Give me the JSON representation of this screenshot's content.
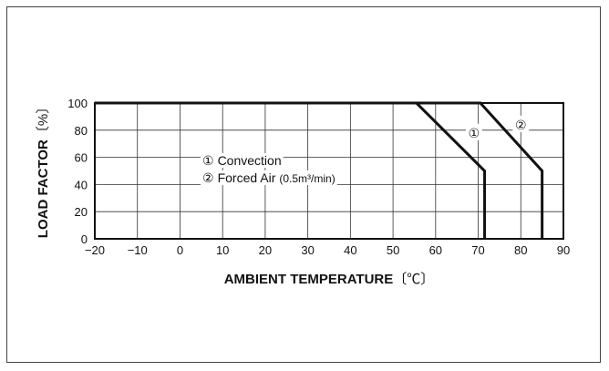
{
  "chart_data": {
    "type": "line",
    "title": "",
    "xlabel": "AMBIENT TEMPERATURE",
    "xlabel_unit": "〔℃〕",
    "ylabel": "LOAD FACTOR",
    "ylabel_unit": "〔%〕",
    "xlim": [
      -20,
      90
    ],
    "ylim": [
      0,
      100
    ],
    "x_ticks": [
      -20,
      -10,
      0,
      10,
      20,
      30,
      40,
      50,
      60,
      70,
      80,
      90
    ],
    "x_tick_labels": [
      "−20",
      "−10",
      "0",
      "10",
      "20",
      "30",
      "40",
      "50",
      "60",
      "70",
      "80",
      "90"
    ],
    "y_ticks": [
      0,
      20,
      40,
      60,
      80,
      100
    ],
    "y_tick_labels": [
      "0",
      "20",
      "40",
      "60",
      "80",
      "100"
    ],
    "grid": true,
    "series": [
      {
        "name": "Convection",
        "marker": "①",
        "points": [
          [
            -20,
            100
          ],
          [
            55.5,
            100
          ],
          [
            71.5,
            50
          ],
          [
            71.5,
            0
          ]
        ]
      },
      {
        "name": "Forced Air",
        "marker": "②",
        "points": [
          [
            -20,
            100
          ],
          [
            70.5,
            100
          ],
          [
            85,
            50
          ],
          [
            85,
            0
          ]
        ]
      }
    ],
    "legend": [
      {
        "marker": "①",
        "text": "Convection",
        "detail": ""
      },
      {
        "marker": "②",
        "text": "Forced Air",
        "detail": "(0.5m³/min)"
      }
    ],
    "curve_labels": [
      {
        "text": "①",
        "x": 69,
        "y": 78
      },
      {
        "text": "②",
        "x": 80,
        "y": 84
      }
    ]
  }
}
